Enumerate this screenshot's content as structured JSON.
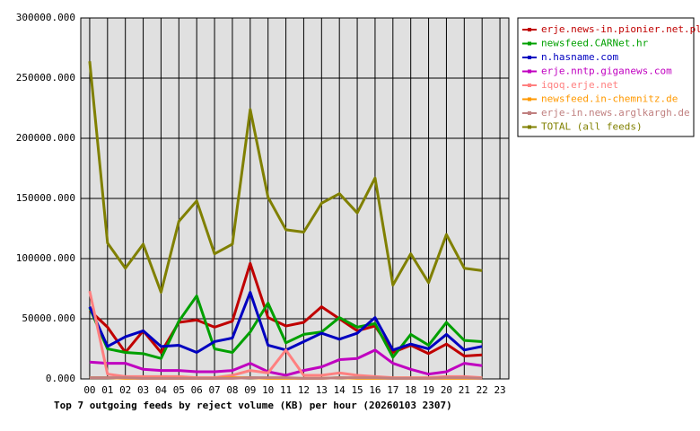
{
  "chart_data": {
    "type": "line",
    "title": "Top 7 outgoing feeds by reject volume (KB) per hour (20260103 2307)",
    "categories": [
      "00",
      "01",
      "02",
      "03",
      "04",
      "05",
      "06",
      "07",
      "08",
      "09",
      "10",
      "11",
      "12",
      "13",
      "14",
      "15",
      "16",
      "17",
      "18",
      "19",
      "20",
      "21",
      "22",
      "23"
    ],
    "ylim": [
      0,
      300000
    ],
    "yticks": [
      {
        "value": 0,
        "label": "0.000"
      },
      {
        "value": 50000,
        "label": "50000.000"
      },
      {
        "value": 100000,
        "label": "100000.000"
      },
      {
        "value": 150000,
        "label": "150000.000"
      },
      {
        "value": 200000,
        "label": "200000.000"
      },
      {
        "value": 250000,
        "label": "250000.000"
      },
      {
        "value": 300000,
        "label": "300000.000"
      }
    ],
    "grid": true,
    "legend": "right",
    "series": [
      {
        "name": "erje.news-in.pionier.net.pl",
        "color": "#c00000",
        "values": [
          57000,
          43000,
          22000,
          40000,
          22000,
          47000,
          49000,
          43000,
          48000,
          96000,
          51000,
          44000,
          47000,
          60000,
          50000,
          40000,
          44000,
          22000,
          28000,
          21000,
          29000,
          19000,
          20000,
          null
        ]
      },
      {
        "name": "newsfeed.CARNet.hr",
        "color": "#00a000",
        "values": [
          59000,
          25000,
          22000,
          21000,
          17000,
          48000,
          69000,
          25000,
          22000,
          39000,
          63000,
          30000,
          37000,
          39000,
          51000,
          43000,
          46000,
          18000,
          37000,
          28000,
          47000,
          32000,
          31000,
          null
        ]
      },
      {
        "name": "n.hasname.com",
        "color": "#0000c0",
        "values": [
          60000,
          27000,
          35000,
          40000,
          27000,
          28000,
          22000,
          31000,
          34000,
          72000,
          28000,
          24000,
          31000,
          38000,
          33000,
          38000,
          51000,
          24000,
          29000,
          25000,
          37000,
          24000,
          27000,
          null
        ]
      },
      {
        "name": "erje.nntp.giganews.com",
        "color": "#c000c0",
        "values": [
          14000,
          13000,
          13000,
          8000,
          7000,
          7000,
          6000,
          6000,
          7000,
          13000,
          6000,
          3000,
          7000,
          10000,
          16000,
          17000,
          24000,
          13000,
          8000,
          4000,
          6000,
          13000,
          11000,
          null
        ]
      },
      {
        "name": "iqoq.erje.net",
        "color": "#ff8080",
        "values": [
          73000,
          4000,
          2000,
          2000,
          2000,
          2000,
          1000,
          1000,
          3000,
          7000,
          5000,
          24000,
          3000,
          3000,
          5000,
          3000,
          2000,
          1000,
          1000,
          1000,
          2000,
          2000,
          1000,
          null
        ]
      },
      {
        "name": "newsfeed.in-chemnitz.de",
        "color": "#ff9900",
        "values": [
          1000,
          1000,
          500,
          500,
          500,
          500,
          500,
          500,
          1000,
          1000,
          500,
          500,
          500,
          500,
          1000,
          500,
          500,
          500,
          500,
          500,
          500,
          500,
          500,
          null
        ]
      },
      {
        "name": "erje-in.news.arglkargh.de",
        "color": "#c08080",
        "values": [
          1000,
          1000,
          1000,
          500,
          500,
          500,
          500,
          500,
          500,
          1000,
          1000,
          1000,
          500,
          500,
          1000,
          1000,
          1000,
          500,
          500,
          500,
          1000,
          1000,
          500,
          null
        ]
      },
      {
        "name": "TOTAL (all feeds)",
        "color": "#808000",
        "values": [
          264000,
          113000,
          92000,
          112000,
          72000,
          131000,
          148000,
          104000,
          112000,
          224000,
          151000,
          124000,
          122000,
          146000,
          154000,
          138000,
          167000,
          78000,
          104000,
          80000,
          120000,
          92000,
          90000,
          null
        ]
      }
    ]
  }
}
